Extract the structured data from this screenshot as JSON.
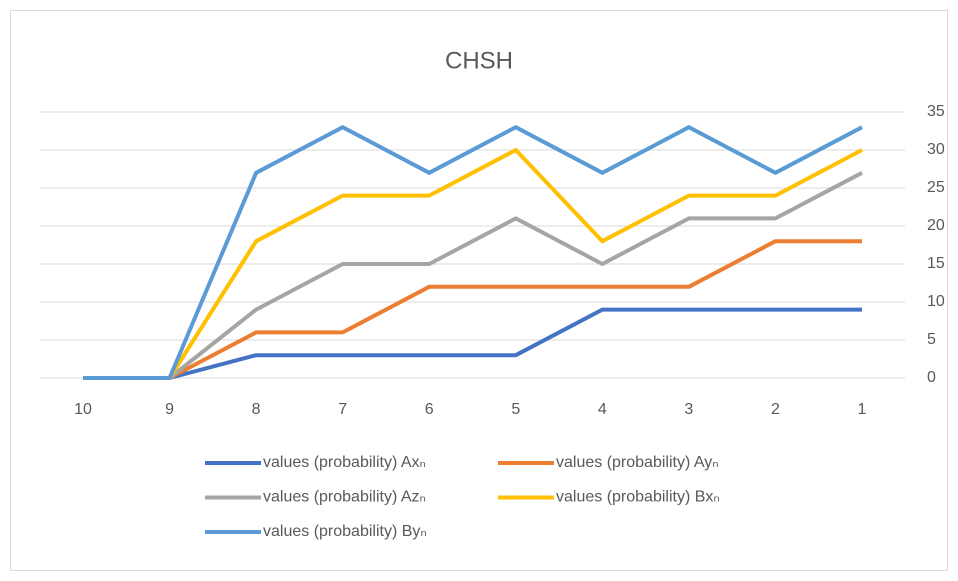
{
  "chart_data": {
    "type": "line",
    "title": "CHSH",
    "categories": [
      "10",
      "9",
      "8",
      "7",
      "6",
      "5",
      "4",
      "3",
      "2",
      "1"
    ],
    "series": [
      {
        "name": "values (probability) Axₙ",
        "color": "#4472c4",
        "values": [
          0,
          0,
          3,
          3,
          3,
          3,
          9,
          9,
          9,
          9
        ]
      },
      {
        "name": "values (probability) Ayₙ",
        "color": "#ed7d31",
        "values": [
          0,
          0,
          6,
          6,
          12,
          12,
          12,
          12,
          18,
          18
        ]
      },
      {
        "name": "values (probability) Azₙ",
        "color": "#a5a5a5",
        "values": [
          0,
          0,
          9,
          15,
          15,
          21,
          15,
          21,
          21,
          27
        ]
      },
      {
        "name": "values (probability) Bxₙ",
        "color": "#ffc000",
        "values": [
          0,
          0,
          18,
          24,
          24,
          30,
          18,
          24,
          24,
          30
        ]
      },
      {
        "name": "values (probability) Byₙ",
        "color": "#5b9bd5",
        "values": [
          0,
          0,
          27,
          33,
          27,
          33,
          27,
          33,
          27,
          33
        ]
      }
    ],
    "ylim": [
      0,
      35
    ],
    "yticks": [
      0,
      5,
      10,
      15,
      20,
      25,
      30,
      35
    ],
    "grid": true,
    "legend": "bottom"
  }
}
